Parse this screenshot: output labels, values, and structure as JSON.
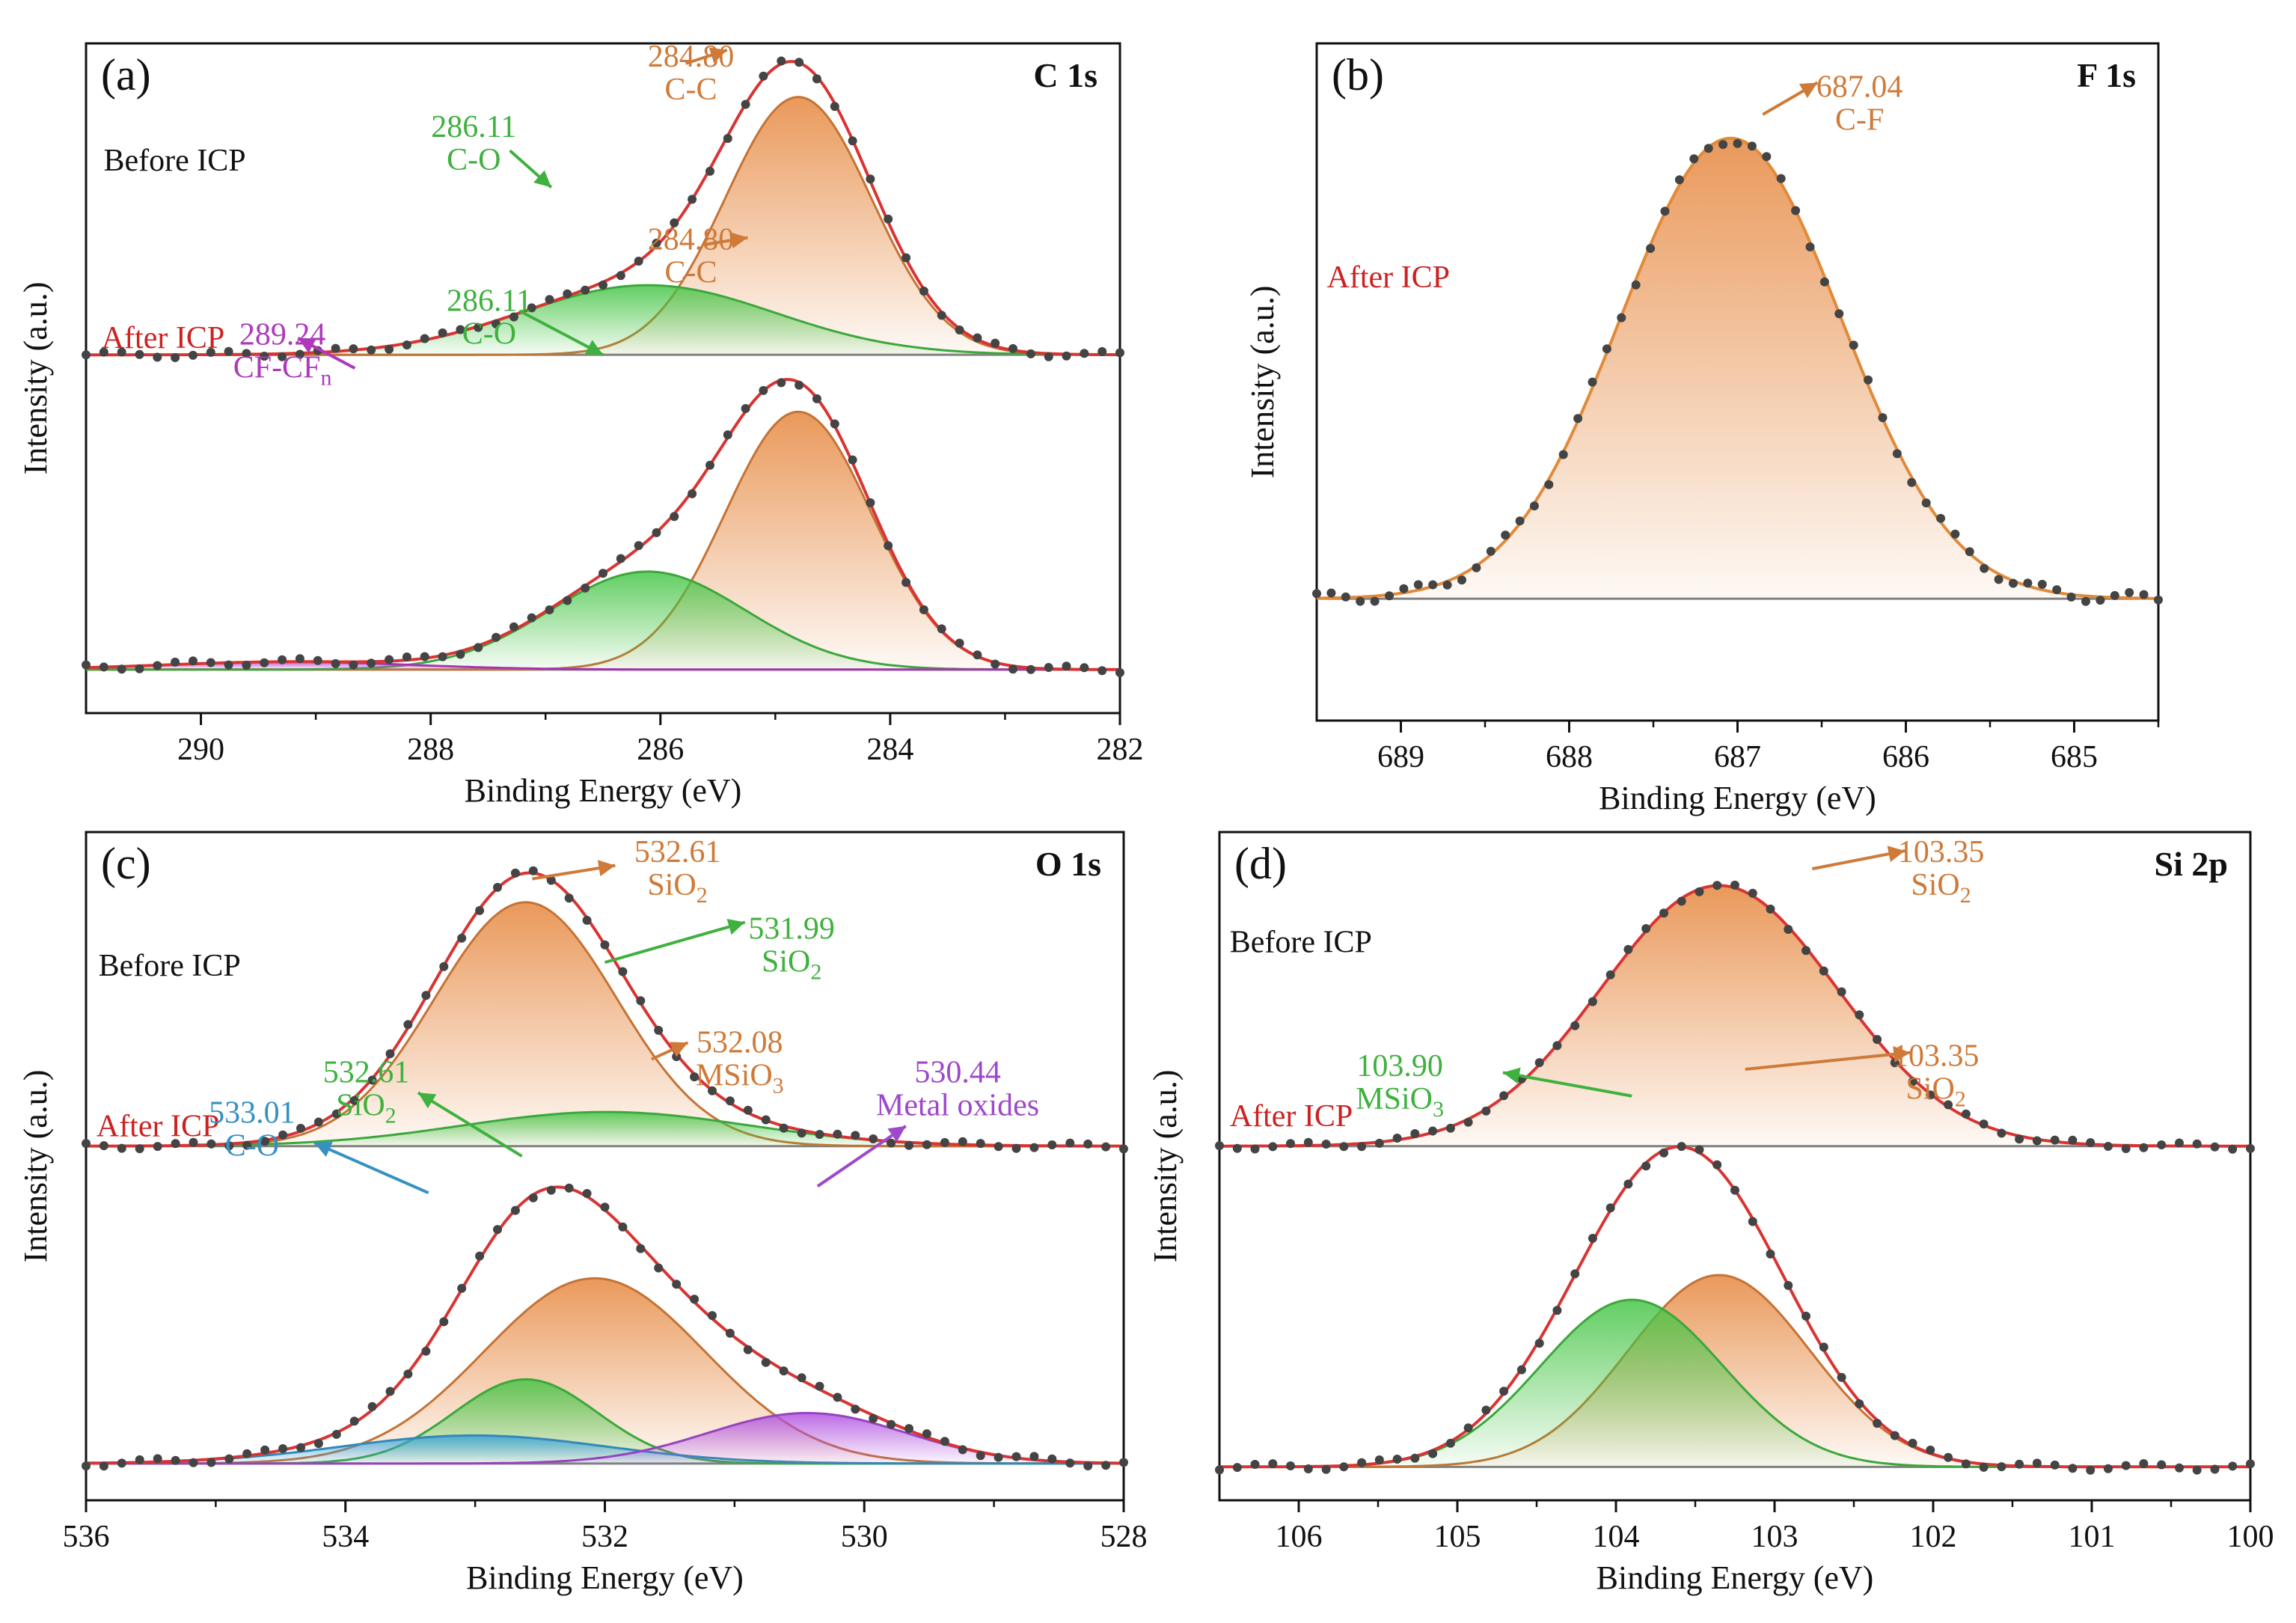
{
  "figure": {
    "x_axis_label": "Binding Energy (eV)",
    "y_axis_label": "Intensity (a.u.)"
  },
  "chart_data": [
    {
      "id": "a",
      "type": "line",
      "panel_label": "(a)",
      "title": "C 1s",
      "xlabel": "Binding Energy (eV)",
      "ylabel": "Intensity (a.u.)",
      "xlim": [
        291,
        282
      ],
      "x_reversed": true,
      "ylim": [
        0,
        1
      ],
      "xticks": [
        290,
        288,
        286,
        284,
        282
      ],
      "tick_labels": [
        "290",
        "288",
        "286",
        "284",
        "282"
      ],
      "grid": false,
      "colors": {
        "fit": "#d93434",
        "data": "#444444",
        "baseline": "#808080"
      },
      "stacks": [
        {
          "name": "Before ICP",
          "label": "Before ICP",
          "label_color": "#111111",
          "baseline": 0.535,
          "height": 0.385,
          "peaks": [
            {
              "center": 284.8,
              "fwhm": 1.5,
              "amp": 1.0,
              "color": "#e6873e",
              "value_label": "284.80",
              "species": "C-C"
            },
            {
              "center": 286.11,
              "fwhm": 2.6,
              "amp": 0.27,
              "color": "#46c546",
              "value_label": "286.11",
              "species": "C-O"
            }
          ]
        },
        {
          "name": "After ICP",
          "label": "After ICP",
          "label_color": "#cc2222",
          "baseline": 0.065,
          "height": 0.385,
          "peaks": [
            {
              "center": 284.8,
              "fwhm": 1.5,
              "amp": 1.0,
              "color": "#e6873e",
              "value_label": "284.80",
              "species": "C-C"
            },
            {
              "center": 286.11,
              "fwhm": 2.0,
              "amp": 0.38,
              "color": "#46c546",
              "value_label": "286.11",
              "species": "C-O"
            },
            {
              "center": 289.24,
              "fwhm": 2.5,
              "amp": 0.03,
              "color": "#c040d0",
              "value_label": "289.24",
              "species": "CF-CFn"
            }
          ]
        }
      ]
    },
    {
      "id": "b",
      "type": "line",
      "panel_label": "(b)",
      "title": "F 1s",
      "xlabel": "Binding Energy (eV)",
      "ylabel": "Intensity (a.u.)",
      "xlim": [
        689.5,
        684.5
      ],
      "x_reversed": true,
      "ylim": [
        0,
        1
      ],
      "xticks": [
        689,
        688,
        687,
        686,
        685
      ],
      "tick_labels": [
        "689",
        "688",
        "687",
        "686",
        "685"
      ],
      "grid": false,
      "colors": {
        "fit": "#e08a3a",
        "data": "#444444",
        "baseline": "#808080"
      },
      "stacks": [
        {
          "name": "After ICP",
          "label": "After ICP",
          "label_color": "#cc2222",
          "baseline": 0.18,
          "height": 0.68,
          "peaks": [
            {
              "center": 687.04,
              "fwhm": 1.55,
              "amp": 1.0,
              "color": "#e6873e",
              "value_label": "687.04",
              "species": "C-F"
            }
          ]
        }
      ]
    },
    {
      "id": "c",
      "type": "line",
      "panel_label": "(c)",
      "title": "O 1s",
      "xlabel": "Binding Energy (eV)",
      "ylabel": "Intensity (a.u.)",
      "xlim": [
        536,
        528
      ],
      "x_reversed": true,
      "ylim": [
        0,
        1
      ],
      "xticks": [
        536,
        534,
        532,
        530,
        528
      ],
      "tick_labels": [
        "536",
        "534",
        "532",
        "530",
        "528"
      ],
      "grid": false,
      "colors": {
        "fit": "#d93434",
        "data": "#444444",
        "baseline": "#808080"
      },
      "stacks": [
        {
          "name": "Before ICP",
          "label": "Before ICP",
          "label_color": "#111111",
          "baseline": 0.53,
          "height": 0.365,
          "peaks": [
            {
              "center": 532.61,
              "fwhm": 1.65,
              "amp": 1.0,
              "color": "#e6873e",
              "value_label": "532.61",
              "species": "SiO2"
            },
            {
              "center": 531.99,
              "fwhm": 2.6,
              "amp": 0.14,
              "color": "#46c546",
              "value_label": "531.99",
              "species": "SiO2"
            }
          ]
        },
        {
          "name": "After ICP",
          "label": "After ICP",
          "label_color": "#cc2222",
          "baseline": 0.055,
          "height": 0.42,
          "peaks": [
            {
              "center": 532.08,
              "fwhm": 2.0,
              "amp": 0.66,
              "color": "#e6873e",
              "value_label": "532.08",
              "species": "MSiO3"
            },
            {
              "center": 532.61,
              "fwhm": 1.3,
              "amp": 0.3,
              "color": "#46c546",
              "value_label": "532.61",
              "species": "SiO2"
            },
            {
              "center": 533.01,
              "fwhm": 2.4,
              "amp": 0.1,
              "color": "#3ba1d8",
              "value_label": "533.01",
              "species": "C-O"
            },
            {
              "center": 530.44,
              "fwhm": 1.8,
              "amp": 0.18,
              "color": "#b050e0",
              "value_label": "530.44",
              "species": "Metal oxides"
            }
          ]
        }
      ]
    },
    {
      "id": "d",
      "type": "line",
      "panel_label": "(d)",
      "title": "Si 2p",
      "xlabel": "Binding Energy (eV)",
      "ylabel": "Intensity (a.u.)",
      "xlim": [
        106.5,
        100
      ],
      "x_reversed": true,
      "ylim": [
        0,
        1
      ],
      "xticks": [
        106,
        105,
        104,
        103,
        102,
        101,
        100
      ],
      "tick_labels": [
        "106",
        "105",
        "104",
        "103",
        "102",
        "101",
        "100"
      ],
      "grid": false,
      "colors": {
        "fit": "#d93434",
        "data": "#444444",
        "baseline": "#808080"
      },
      "stacks": [
        {
          "name": "Before ICP",
          "label": "Before ICP",
          "label_color": "#111111",
          "baseline": 0.53,
          "height": 0.39,
          "peaks": [
            {
              "center": 103.35,
              "fwhm": 1.75,
              "amp": 1.0,
              "color": "#e6873e",
              "value_label": "103.35",
              "species": "SiO2"
            }
          ]
        },
        {
          "name": "After ICP",
          "label": "After ICP",
          "label_color": "#cc2222",
          "baseline": 0.05,
          "height": 0.41,
          "peaks": [
            {
              "center": 103.35,
              "fwhm": 1.35,
              "amp": 0.7,
              "color": "#e6873e",
              "value_label": "103.35",
              "species": "SiO2"
            },
            {
              "center": 103.9,
              "fwhm": 1.35,
              "amp": 0.61,
              "color": "#46c546",
              "value_label": "103.90",
              "species": "MSiO3"
            }
          ]
        }
      ]
    }
  ]
}
